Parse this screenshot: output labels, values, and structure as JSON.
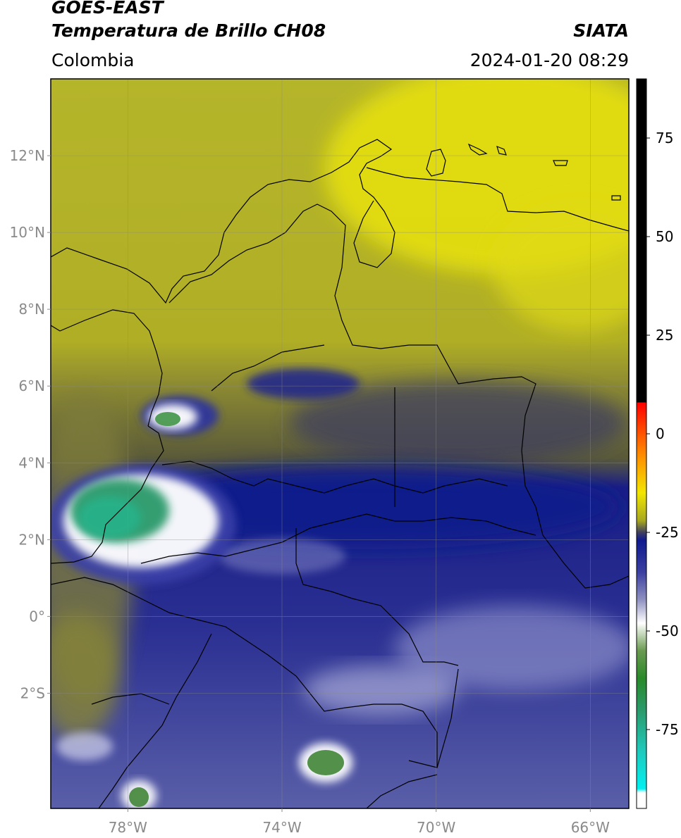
{
  "header": {
    "satellite": "GOES-EAST",
    "product": "Temperatura de Brillo CH08",
    "source": "SIATA",
    "region": "Colombia",
    "timestamp": "2024-01-20 08:29"
  },
  "map": {
    "lon_range": [
      -80,
      -65
    ],
    "lat_range": [
      -5,
      14
    ],
    "lat_ticks": [
      {
        "value": 12,
        "label": "12°N"
      },
      {
        "value": 10,
        "label": "10°N"
      },
      {
        "value": 8,
        "label": "8°N"
      },
      {
        "value": 6,
        "label": "6°N"
      },
      {
        "value": 4,
        "label": "4°N"
      },
      {
        "value": 2,
        "label": "2°N"
      },
      {
        "value": 0,
        "label": "0°"
      },
      {
        "value": -2,
        "label": "2°S"
      }
    ],
    "lon_ticks": [
      {
        "value": -78,
        "label": "78°W"
      },
      {
        "value": -74,
        "label": "74°W"
      },
      {
        "value": -70,
        "label": "70°W"
      },
      {
        "value": -66,
        "label": "66°W"
      }
    ],
    "grid": true
  },
  "colorbar": {
    "range": [
      -95,
      90
    ],
    "ticks": [
      {
        "value": 75,
        "label": "75"
      },
      {
        "value": 50,
        "label": "50"
      },
      {
        "value": 25,
        "label": "25"
      },
      {
        "value": 0,
        "label": "0"
      },
      {
        "value": -25,
        "label": "-25"
      },
      {
        "value": -50,
        "label": "-50"
      },
      {
        "value": -75,
        "label": "-75"
      }
    ],
    "stops": [
      {
        "value": 90,
        "color": "#000000"
      },
      {
        "value": 8,
        "color": "#000000"
      },
      {
        "value": 7.9,
        "color": "#ff0000"
      },
      {
        "value": -5,
        "color": "#ff8800"
      },
      {
        "value": -15,
        "color": "#f2e600"
      },
      {
        "value": -22,
        "color": "#a8a820"
      },
      {
        "value": -25,
        "color": "#404060"
      },
      {
        "value": -27,
        "color": "#101a90"
      },
      {
        "value": -35,
        "color": "#3a3fa0"
      },
      {
        "value": -42,
        "color": "#8e90c0"
      },
      {
        "value": -48,
        "color": "#ffffff"
      },
      {
        "value": -55,
        "color": "#6a9a50"
      },
      {
        "value": -62,
        "color": "#2a8a2a"
      },
      {
        "value": -70,
        "color": "#2a9a6a"
      },
      {
        "value": -80,
        "color": "#20c8b8"
      },
      {
        "value": -90,
        "color": "#00f0f0"
      },
      {
        "value": -91,
        "color": "#ffffff"
      },
      {
        "value": -95,
        "color": "#ffffff"
      }
    ]
  }
}
